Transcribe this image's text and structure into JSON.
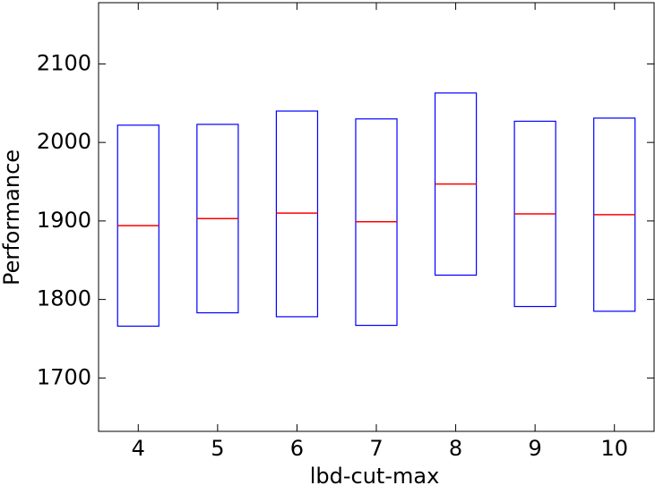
{
  "chart_data": {
    "type": "box",
    "x_label": "lbd-cut-max",
    "y_label": "Performance",
    "categories": [
      "4",
      "5",
      "6",
      "7",
      "8",
      "9",
      "10"
    ],
    "q1": [
      1766,
      1783,
      1778,
      1767,
      1831,
      1791,
      1785
    ],
    "median": [
      1894,
      1903,
      1910,
      1899,
      1947,
      1909,
      1908
    ],
    "q3": [
      2022,
      2023,
      2040,
      2030,
      2063,
      2027,
      2031
    ],
    "box_color": "#0000ff",
    "median_color": "#ff0000",
    "ylim": [
      1632,
      2178
    ],
    "yticks": [
      1700,
      1800,
      1900,
      2000,
      2100
    ],
    "grid": false
  }
}
